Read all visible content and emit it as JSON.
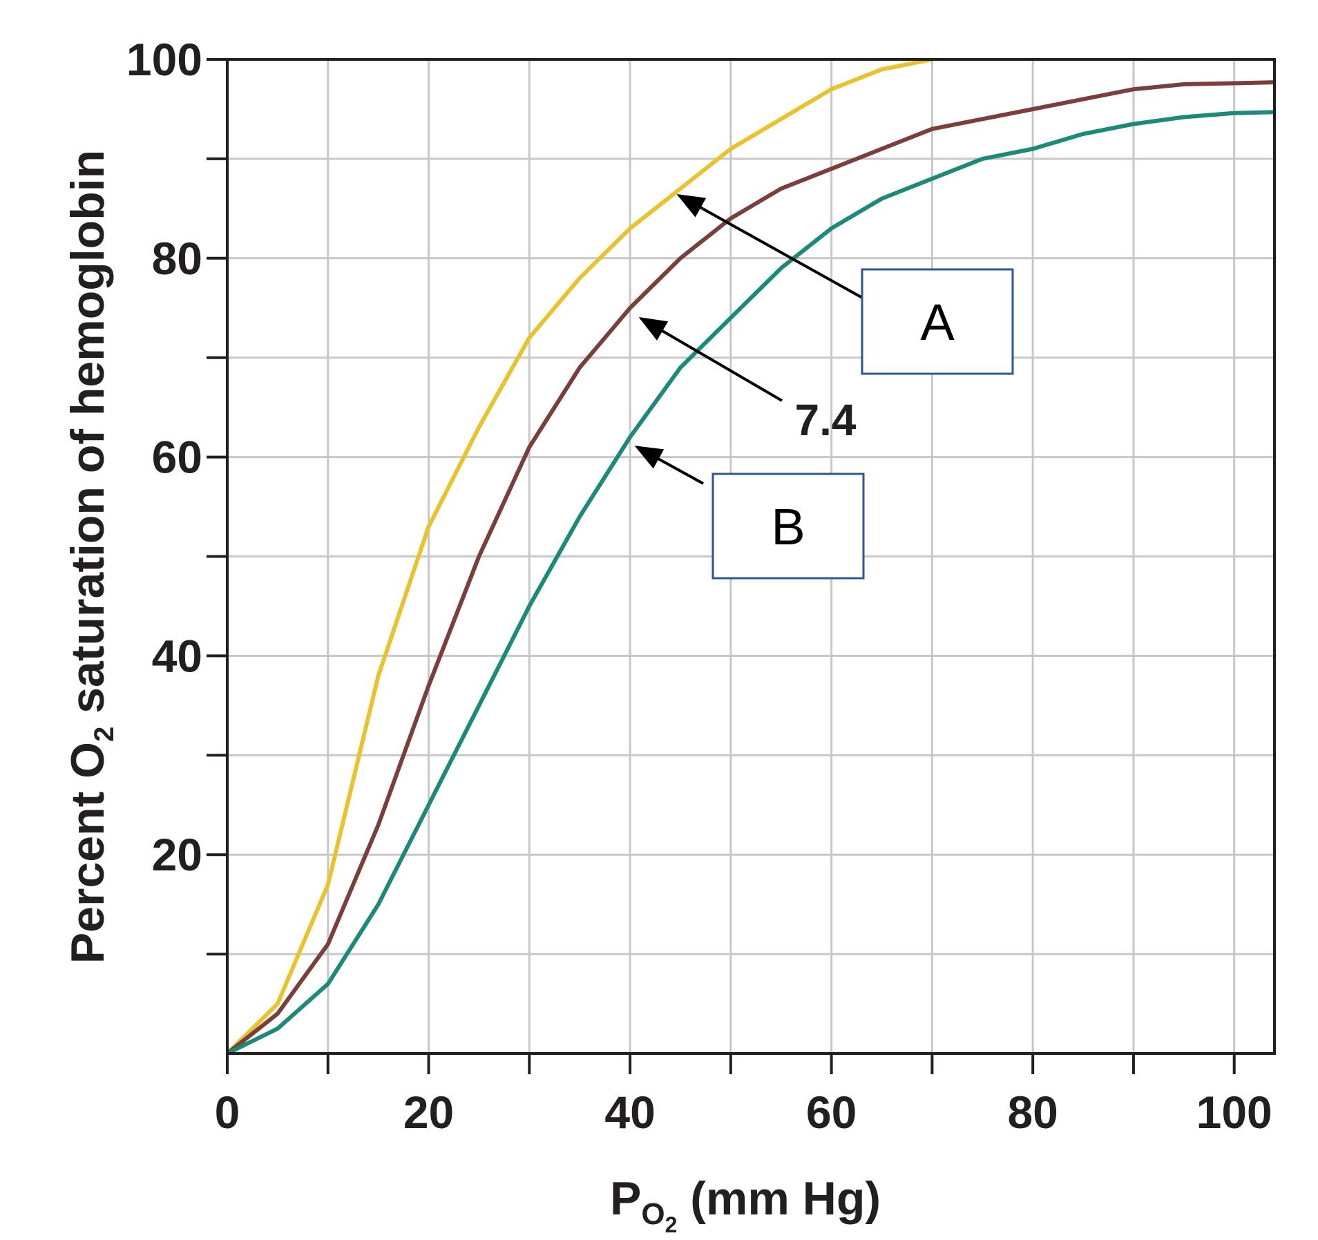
{
  "chart_data": {
    "type": "line",
    "ylabel": [
      "Percent O",
      "2",
      " saturation of hemoglobin"
    ],
    "xlabel": [
      "P",
      "O",
      "2",
      " (mm Hg)"
    ],
    "x": [
      0,
      5,
      10,
      15,
      20,
      25,
      30,
      35,
      40,
      45,
      50,
      55,
      60,
      65,
      70,
      75,
      80,
      85,
      90,
      95,
      100,
      104
    ],
    "series": [
      {
        "name": "A",
        "color": "#e9c22e",
        "values": [
          0,
          5,
          17,
          38,
          53,
          63,
          72,
          78,
          83,
          87,
          91,
          94,
          97,
          99,
          100,
          null,
          null,
          null,
          null,
          null,
          null,
          null
        ]
      },
      {
        "name": "7.4",
        "color": "#7b3f3b",
        "values": [
          0,
          4,
          11,
          23,
          37,
          50,
          61,
          69,
          75,
          80,
          84,
          87,
          89,
          91,
          93,
          94,
          95,
          96,
          97,
          97.5,
          97.6,
          97.7
        ]
      },
      {
        "name": "B",
        "color": "#1b8a78",
        "values": [
          0,
          2.5,
          7,
          15,
          25,
          35,
          45,
          54,
          62,
          69,
          74,
          79,
          83,
          86,
          88,
          90,
          91,
          92.5,
          93.5,
          94.2,
          94.6,
          94.7
        ]
      }
    ],
    "xlim": [
      0,
      104
    ],
    "ylim": [
      0,
      100
    ],
    "xticks": [
      0,
      20,
      40,
      60,
      80,
      100
    ],
    "yticks": [
      20,
      40,
      60,
      80,
      100
    ],
    "xminor": [
      10,
      30,
      50,
      70,
      90
    ],
    "yminor": [
      10,
      30,
      50,
      70,
      90
    ],
    "grid": true
  }
}
